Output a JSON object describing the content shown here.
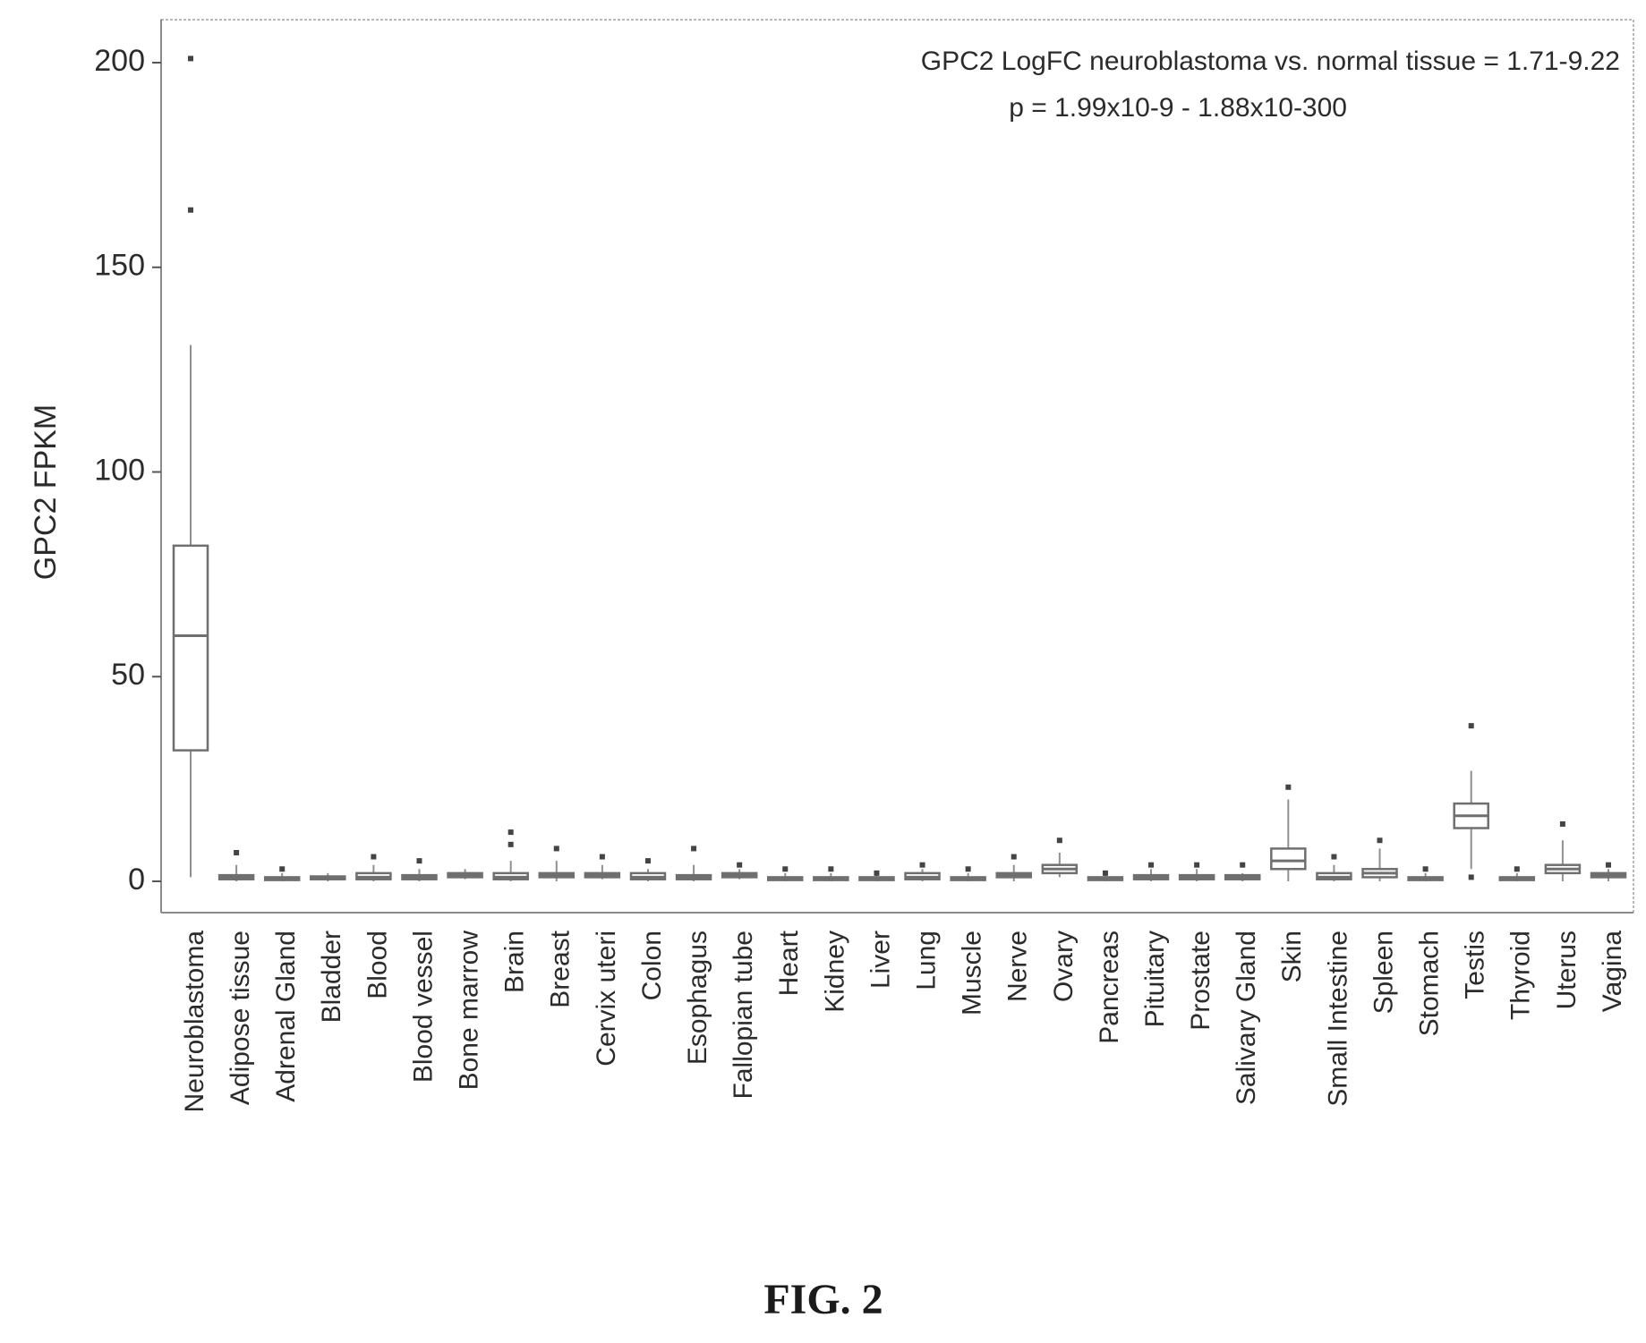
{
  "figure_caption": "FIG. 2",
  "chart_data": {
    "type": "box",
    "title": "",
    "annotation_line1": "GPC2 LogFC neuroblastoma vs. normal tissue = 1.71-9.22",
    "annotation_line2": "p = 1.99x10-9 - 1.88x10-300",
    "xlabel": "",
    "ylabel": "GPC2 FPKM",
    "ylim": [
      -10,
      210
    ],
    "yticks": [
      0,
      50,
      100,
      150,
      200
    ],
    "grid": false,
    "categories": [
      "Neuroblastoma",
      "Adipose tissue",
      "Adrenal Gland",
      "Bladder",
      "Blood",
      "Blood vessel",
      "Bone marrow",
      "Brain",
      "Breast",
      "Cervix uteri",
      "Colon",
      "Esophagus",
      "Fallopian tube",
      "Heart",
      "Kidney",
      "Liver",
      "Lung",
      "Muscle",
      "Nerve",
      "Ovary",
      "Pancreas",
      "Pituitary",
      "Prostate",
      "Salivary Gland",
      "Skin",
      "Small Intestine",
      "Spleen",
      "Stomach",
      "Testis",
      "Thyroid",
      "Uterus",
      "Vagina"
    ],
    "boxes": [
      {
        "whisker_low": 1,
        "q1": 32,
        "median": 60,
        "q3": 82,
        "whisker_high": 131,
        "outliers": [
          164,
          201
        ]
      },
      {
        "whisker_low": 0,
        "q1": 0.5,
        "median": 1,
        "q3": 1.5,
        "whisker_high": 4,
        "outliers": [
          7
        ]
      },
      {
        "whisker_low": 0,
        "q1": 0.3,
        "median": 0.5,
        "q3": 1,
        "whisker_high": 2,
        "outliers": [
          3
        ]
      },
      {
        "whisker_low": 0,
        "q1": 0.5,
        "median": 0.8,
        "q3": 1.2,
        "whisker_high": 2,
        "outliers": []
      },
      {
        "whisker_low": 0,
        "q1": 0.5,
        "median": 1,
        "q3": 2,
        "whisker_high": 4,
        "outliers": [
          6
        ]
      },
      {
        "whisker_low": 0,
        "q1": 0.5,
        "median": 1,
        "q3": 1.5,
        "whisker_high": 3,
        "outliers": [
          5
        ]
      },
      {
        "whisker_low": 0.5,
        "q1": 1,
        "median": 1.5,
        "q3": 2,
        "whisker_high": 3,
        "outliers": []
      },
      {
        "whisker_low": 0,
        "q1": 0.5,
        "median": 1,
        "q3": 2,
        "whisker_high": 5,
        "outliers": [
          9,
          12
        ]
      },
      {
        "whisker_low": 0,
        "q1": 1,
        "median": 1.5,
        "q3": 2,
        "whisker_high": 5,
        "outliers": [
          8
        ]
      },
      {
        "whisker_low": 0.5,
        "q1": 1,
        "median": 1.5,
        "q3": 2,
        "whisker_high": 4,
        "outliers": [
          6
        ]
      },
      {
        "whisker_low": 0,
        "q1": 0.5,
        "median": 1,
        "q3": 2,
        "whisker_high": 3,
        "outliers": [
          5
        ]
      },
      {
        "whisker_low": 0,
        "q1": 0.5,
        "median": 1,
        "q3": 1.5,
        "whisker_high": 4,
        "outliers": [
          8
        ]
      },
      {
        "whisker_low": 0.5,
        "q1": 1,
        "median": 1.5,
        "q3": 2,
        "whisker_high": 3,
        "outliers": [
          4
        ]
      },
      {
        "whisker_low": 0,
        "q1": 0.3,
        "median": 0.5,
        "q3": 1,
        "whisker_high": 2,
        "outliers": [
          3
        ]
      },
      {
        "whisker_low": 0,
        "q1": 0.3,
        "median": 0.5,
        "q3": 1,
        "whisker_high": 2,
        "outliers": [
          3
        ]
      },
      {
        "whisker_low": 0,
        "q1": 0.3,
        "median": 0.5,
        "q3": 1,
        "whisker_high": 1.5,
        "outliers": [
          2
        ]
      },
      {
        "whisker_low": 0,
        "q1": 0.5,
        "median": 1,
        "q3": 2,
        "whisker_high": 3,
        "outliers": [
          4
        ]
      },
      {
        "whisker_low": 0,
        "q1": 0.3,
        "median": 0.5,
        "q3": 1,
        "whisker_high": 2,
        "outliers": [
          3
        ]
      },
      {
        "whisker_low": 0,
        "q1": 1,
        "median": 1.5,
        "q3": 2,
        "whisker_high": 4,
        "outliers": [
          6
        ]
      },
      {
        "whisker_low": 1,
        "q1": 2,
        "median": 3,
        "q3": 4,
        "whisker_high": 7,
        "outliers": [
          10
        ]
      },
      {
        "whisker_low": 0,
        "q1": 0.3,
        "median": 0.5,
        "q3": 1,
        "whisker_high": 1.5,
        "outliers": [
          2
        ]
      },
      {
        "whisker_low": 0,
        "q1": 0.5,
        "median": 1,
        "q3": 1.5,
        "whisker_high": 3,
        "outliers": [
          4
        ]
      },
      {
        "whisker_low": 0,
        "q1": 0.5,
        "median": 1,
        "q3": 1.5,
        "whisker_high": 3,
        "outliers": [
          4
        ]
      },
      {
        "whisker_low": 0,
        "q1": 0.5,
        "median": 1,
        "q3": 1.5,
        "whisker_high": 2,
        "outliers": [
          4
        ]
      },
      {
        "whisker_low": 0,
        "q1": 3,
        "median": 5,
        "q3": 8,
        "whisker_high": 20,
        "outliers": [
          23
        ]
      },
      {
        "whisker_low": 0,
        "q1": 0.5,
        "median": 1,
        "q3": 2,
        "whisker_high": 4,
        "outliers": [
          6
        ]
      },
      {
        "whisker_low": 0,
        "q1": 1,
        "median": 2,
        "q3": 3,
        "whisker_high": 8,
        "outliers": [
          10
        ]
      },
      {
        "whisker_low": 0,
        "q1": 0.3,
        "median": 0.5,
        "q3": 1,
        "whisker_high": 2,
        "outliers": [
          3
        ]
      },
      {
        "whisker_low": 3,
        "q1": 13,
        "median": 16,
        "q3": 19,
        "whisker_high": 27,
        "outliers": [
          1,
          38
        ]
      },
      {
        "whisker_low": 0,
        "q1": 0.3,
        "median": 0.5,
        "q3": 1,
        "whisker_high": 2,
        "outliers": [
          3
        ]
      },
      {
        "whisker_low": 0,
        "q1": 2,
        "median": 3,
        "q3": 4,
        "whisker_high": 10,
        "outliers": [
          14
        ]
      },
      {
        "whisker_low": 0,
        "q1": 1,
        "median": 1.5,
        "q3": 2,
        "whisker_high": 3,
        "outliers": [
          4
        ]
      }
    ]
  }
}
